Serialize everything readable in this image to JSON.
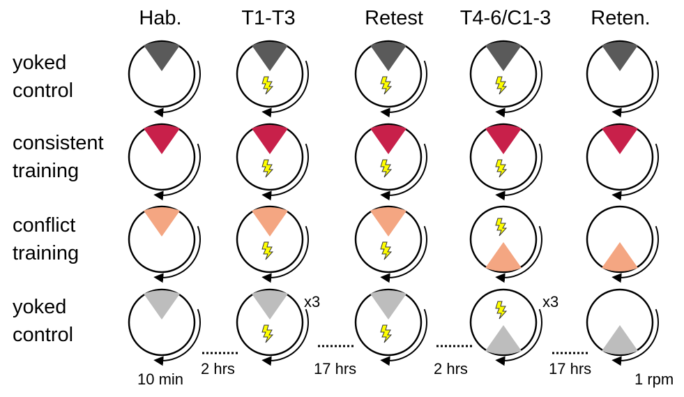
{
  "columns": [
    "Hab.",
    "T1-T3",
    "Retest",
    "T4-6/C1-3",
    "Reten."
  ],
  "rows": [
    {
      "label_line1": "yoked",
      "label_line2": "control",
      "color": "#5a5a5a",
      "cells": [
        {
          "sector": "top",
          "shock": false
        },
        {
          "sector": "top",
          "shock": true
        },
        {
          "sector": "top",
          "shock": true
        },
        {
          "sector": "top",
          "shock": true
        },
        {
          "sector": "top",
          "shock": false
        }
      ]
    },
    {
      "label_line1": "consistent",
      "label_line2": "training",
      "color": "#c8204a",
      "cells": [
        {
          "sector": "top",
          "shock": false
        },
        {
          "sector": "top",
          "shock": true
        },
        {
          "sector": "top",
          "shock": true
        },
        {
          "sector": "top",
          "shock": true
        },
        {
          "sector": "top",
          "shock": false
        }
      ]
    },
    {
      "label_line1": "conflict",
      "label_line2": "training",
      "color": "#f4a682",
      "cells": [
        {
          "sector": "top",
          "shock": false
        },
        {
          "sector": "top",
          "shock": true
        },
        {
          "sector": "top",
          "shock": true
        },
        {
          "sector": "bottom",
          "shock": true
        },
        {
          "sector": "bottom",
          "shock": false
        }
      ]
    },
    {
      "label_line1": "yoked",
      "label_line2": "control",
      "color": "#bdbdbd",
      "cells": [
        {
          "sector": "top",
          "shock": false
        },
        {
          "sector": "top",
          "shock": true
        },
        {
          "sector": "top",
          "shock": true
        },
        {
          "sector": "bottom",
          "shock": true
        },
        {
          "sector": "bottom",
          "shock": false
        }
      ]
    }
  ],
  "repeat_labels": [
    "x3",
    "x3"
  ],
  "durations": {
    "hab": "10 min",
    "gap1": "2 hrs",
    "gap2": "17 hrs",
    "gap3": "2 hrs",
    "gap4": "17 hrs",
    "speed": "1 rpm"
  },
  "icons": {
    "shock": "lightning-bolt-icon",
    "rotation": "rotation-arrow-icon"
  },
  "shock_color": "#ffff00"
}
